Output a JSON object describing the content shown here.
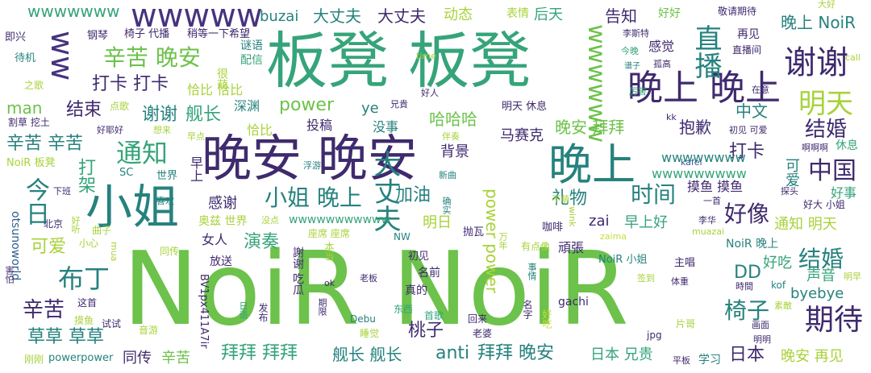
{
  "words": {
    "w01": "NoiR NoiR",
    "w02": "板凳 板凳",
    "w03": "晚安 晚安",
    "w04": "小姐",
    "w05": "晚上",
    "w06": "晚上 晚上",
    "w07": "谢谢",
    "w08": "明天",
    "w09": "wwwww",
    "w10": "ww",
    "w11": "wwwwww",
    "w12": "辛苦 晚安",
    "w13": "直播",
    "w14": "通知",
    "w15": "大丈夫",
    "w16": "期待",
    "w17": "布丁",
    "w18": "小姐 晚上",
    "w19": "时间",
    "w20": "中国",
    "w21": "今日",
    "w22": "结婚",
    "w23": "结婚",
    "w24": "好像",
    "w25": "椅子",
    "w26": "辛苦",
    "w27": "打卡 打卡",
    "w28": "结束",
    "w29": "舰长",
    "w30": "谢谢",
    "w31": "power",
    "w32": "辛苦 辛苦",
    "w33": "打架",
    "w34": "加油",
    "w35": "礼物",
    "w36": "演奏",
    "w37": "可爱",
    "w38": "草草 草草",
    "w39": "anti",
    "w40": "拜拜 晚安",
    "w41": "拜拜 拜拜",
    "w42": "舰长 舰长",
    "w43": "桃子",
    "w44": "同传",
    "w45": "辛苦",
    "w46": "日本 兄贵",
    "w47": "日本",
    "w48": "晚安 再见",
    "w49": "byebye",
    "w50": "声音",
    "w51": "DD",
    "w52": "好吃",
    "w53": "power power",
    "w54": "晚安 拜拜",
    "w55": "哈哈哈",
    "w56": "感谢",
    "w57": "man",
    "w58": "打卡",
    "w59": "抱歉",
    "w60": "中文",
    "w61": "晚上 NoiR",
    "w62": "大丈夫",
    "w63": "大丈夫",
    "w64": "buzai",
    "w65": "动态",
    "w66": "告知",
    "w67": "后天",
    "w68": "wwwwwww",
    "w69": "wwwwwwww",
    "w70": "wwwwwwwww",
    "w71": "wwwwwwwwwww",
    "w72": "好好",
    "w73": "表情",
    "w74": "谜语",
    "w75": "配信",
    "w76": "早上",
    "w77": "马赛克",
    "w78": "背景",
    "w79": "投稿",
    "w80": "没事",
    "w81": "明日",
    "w82": "zai",
    "w83": "早上好",
    "w84": "通知 明天",
    "w85": "摸鱼 摸鱼",
    "w86": "可爱",
    "w87": "好事",
    "w88": "深渊",
    "w89": "恰比",
    "w90": "恰比 恰比",
    "w91": "很萌",
    "w92": "ye",
    "w93": "otsunoworld",
    "w94": "即兴",
    "w95": "钢琴",
    "w96": "椅子 代播",
    "w97": "稍等一下希望",
    "w98": "敬请期待",
    "w99": "大好",
    "w100": "再见",
    "w101": "直播间",
    "w102": "李斯特",
    "w103": "孤高",
    "w104": "今晚",
    "w105": "谱子",
    "w106": "厉害",
    "w107": "在意",
    "w108": "感觉",
    "w109": "call",
    "w110": "time",
    "w111": "待机",
    "w112": "之歌",
    "w113": "点歌",
    "w114": "割草 挖土",
    "w115": "好耶好",
    "w116": "想来",
    "w117": "早点",
    "w118": "兄貴",
    "w119": "好人",
    "w120": "明天 休息",
    "w121": "kk",
    "w122": "初见 可爱",
    "w123": "啊啊啊",
    "w124": "休息",
    "w125": "伴奏",
    "w126": "NoiR 板凳",
    "w127": "SC",
    "w128": "世界",
    "w129": "浮游",
    "w130": "新曲",
    "w131": "kafei",
    "w132": "探头",
    "w133": "一首",
    "w134": "好大 小姐",
    "w135": "下班",
    "w136": "喜欢",
    "w137": "曲子",
    "w138": "北京",
    "w139": "奥兹 世界",
    "w140": "没点",
    "w141": "不萌",
    "w142": "李华",
    "w143": "确实",
    "w144": "咖啡",
    "w145": "muazai",
    "w146": "zaima",
    "w147": "抛瓦",
    "w148": "好听",
    "w149": "小心",
    "w150": "mua",
    "w151": "座席 座席",
    "w152": "NW",
    "w153": "有点像",
    "w154": "NoiR 晚上",
    "w155": "女人",
    "w156": "同传",
    "w157": "放送",
    "w158": "本当",
    "w159": "謝谢 吃瓜",
    "w160": "初见",
    "w161": "名前",
    "w162": "頑張",
    "w163": "NoiR 小姐",
    "w164": "主唱",
    "w165": "体重",
    "w166": "签到",
    "w167": "明早",
    "w168": "時間",
    "w169": "kof",
    "w170": "BV1px411A7ir",
    "w171": "害怕",
    "w172": "老板",
    "w173": "真的",
    "w174": "事情",
    "w175": "ok",
    "w176": "gachi",
    "w177": "这首",
    "w178": "日语",
    "w179": "期限",
    "w180": "发布",
    "w181": "东西",
    "w182": "首歌",
    "w183": "回来",
    "w184": "名字",
    "w185": "好吃",
    "w186": "素敵",
    "w187": "片哥",
    "w188": "画面",
    "w189": "明明",
    "w190": "jpg",
    "w191": "平板",
    "w192": "学习",
    "w193": "摸鱼",
    "w194": "试试",
    "w195": "音游",
    "w196": "Debu",
    "w197": "睡觉",
    "w198": "老婆",
    "w199": "刚刚",
    "w200": "powerpower",
    "w201": "wink",
    "w202": "万年"
  },
  "palette": [
    "#3f2a6e",
    "#2f5e8c",
    "#26827e",
    "#36a47a",
    "#6cc24a",
    "#a8d23a",
    "#c9dc3a",
    "#46337e"
  ]
}
